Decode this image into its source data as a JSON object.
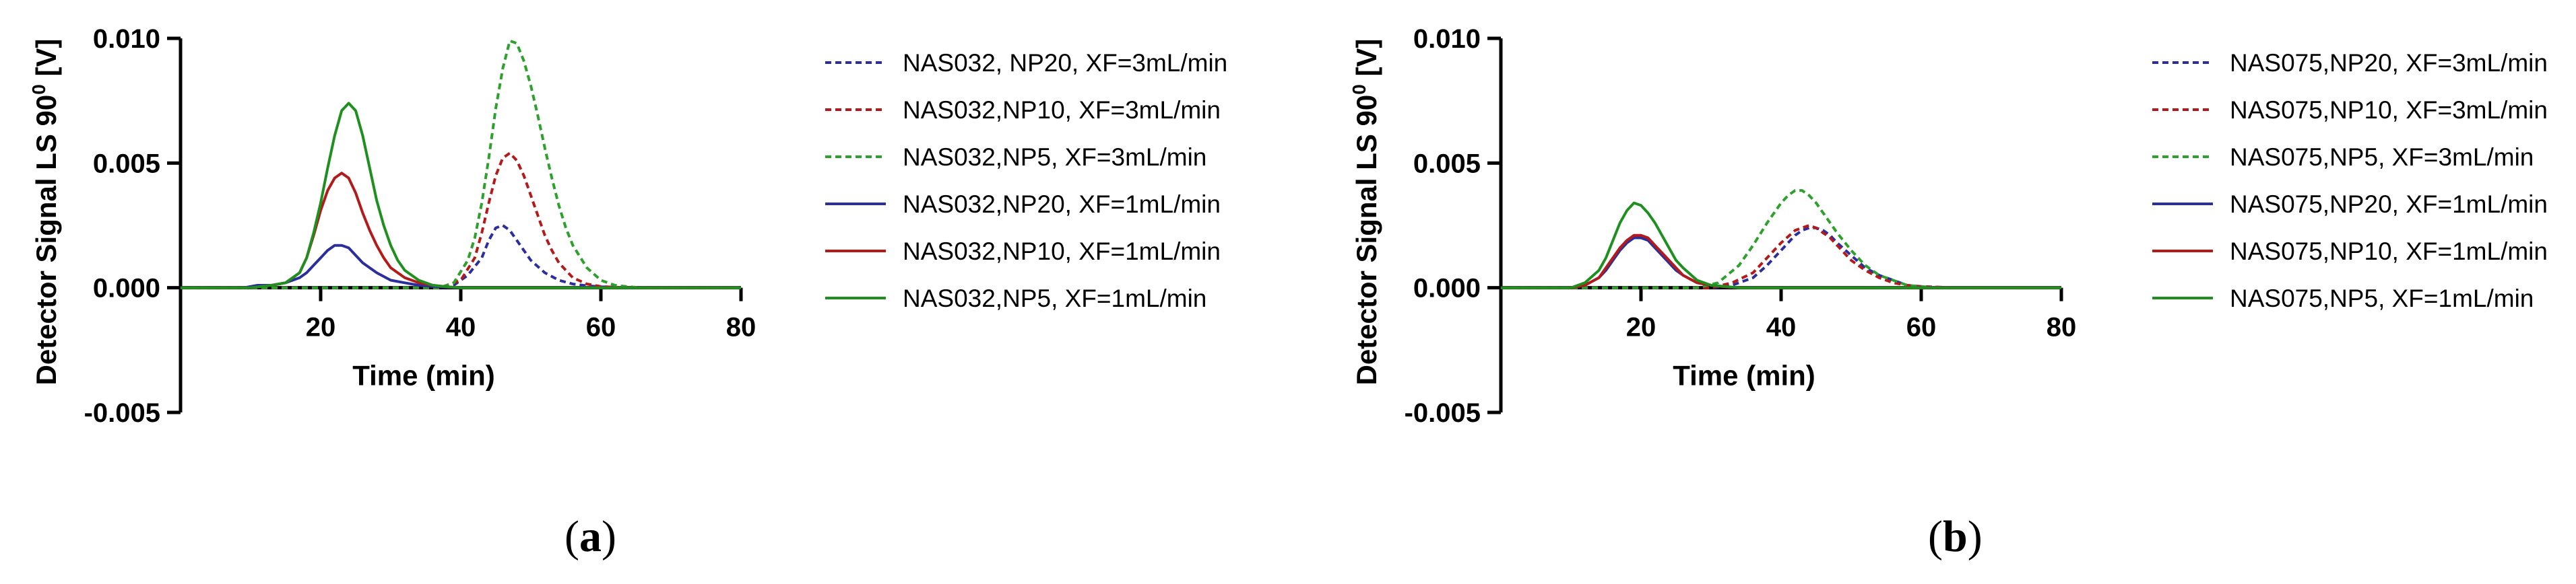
{
  "chart_data": [
    {
      "type": "line",
      "panel_label": "a",
      "title": "",
      "xlabel": "Time (min)",
      "ylabel": "Detector Signal LS 90",
      "ylabel_sup": "0",
      "ylabel_unit": "[V]",
      "xlim": [
        0,
        80
      ],
      "ylim": [
        -0.005,
        0.01
      ],
      "xticks": [
        20,
        40,
        60,
        80
      ],
      "xtick_labels": [
        "20",
        "40",
        "60",
        "80"
      ],
      "yticks": [
        -0.005,
        0.0,
        0.005,
        0.01
      ],
      "ytick_labels": [
        "-0.005",
        "0.000",
        "0.005",
        "0.010"
      ],
      "grid": false,
      "legend": "right",
      "series": [
        {
          "name": "NAS032, NP20, XF=3mL/min",
          "color": "#2b2f9e",
          "style": "dashed",
          "x": [
            0,
            36,
            39,
            41,
            43,
            44,
            45,
            46,
            47,
            48,
            49,
            50,
            52,
            54,
            56,
            58,
            60,
            64,
            70,
            80
          ],
          "y": [
            0,
            0,
            0.0001,
            0.0005,
            0.0012,
            0.0019,
            0.0024,
            0.0025,
            0.0023,
            0.0019,
            0.0015,
            0.0011,
            0.0006,
            0.0003,
            0.00015,
            8e-05,
            4e-05,
            1e-05,
            0,
            0
          ]
        },
        {
          "name": "NAS032,NP10, XF=3mL/min",
          "color": "#b31a1a",
          "style": "dashed",
          "x": [
            0,
            37,
            40,
            42,
            43,
            44,
            45,
            46,
            47,
            48,
            49,
            50,
            51,
            52,
            53,
            54,
            56,
            58,
            60,
            62,
            64,
            70,
            80
          ],
          "y": [
            0,
            0,
            0.0003,
            0.0012,
            0.0022,
            0.0034,
            0.0045,
            0.0052,
            0.0054,
            0.0051,
            0.0045,
            0.0037,
            0.0029,
            0.0021,
            0.0015,
            0.001,
            0.0004,
            0.00015,
            5e-05,
            2e-05,
            0,
            0,
            0
          ]
        },
        {
          "name": "NAS032,NP5,  XF=3mL/min",
          "color": "#2ea02e",
          "style": "dashed",
          "x": [
            0,
            37,
            39,
            41,
            42,
            43,
            44,
            45,
            46,
            47,
            48,
            49,
            50,
            51,
            52,
            53,
            54,
            55,
            56,
            58,
            60,
            62,
            64,
            66,
            70,
            80
          ],
          "y": [
            0,
            0,
            0.0002,
            0.0011,
            0.002,
            0.0034,
            0.0052,
            0.0072,
            0.0088,
            0.0099,
            0.0098,
            0.0091,
            0.0081,
            0.0069,
            0.0056,
            0.0044,
            0.0033,
            0.0024,
            0.0017,
            0.0008,
            0.0003,
            0.0001,
            4e-05,
            0,
            0,
            0
          ]
        },
        {
          "name": "NAS032,NP20, XF=1mL/min",
          "color": "#2b2f9e",
          "style": "solid",
          "x": [
            0,
            9,
            11,
            13,
            15,
            17,
            18,
            19,
            20,
            21,
            22,
            23,
            24,
            25,
            26,
            27,
            28,
            30,
            32,
            34,
            36,
            38,
            40,
            50,
            80
          ],
          "y": [
            0,
            0,
            0.0001,
            0.0001,
            0.0002,
            0.0004,
            0.0006,
            0.0009,
            0.0012,
            0.0015,
            0.0017,
            0.0017,
            0.0016,
            0.0013,
            0.001,
            0.0008,
            0.0006,
            0.0003,
            0.0002,
            0.0001,
            5e-05,
            2e-05,
            0,
            0,
            0
          ]
        },
        {
          "name": "NAS032,NP10, XF=1mL/min",
          "color": "#b31a1a",
          "style": "solid",
          "x": [
            0,
            10,
            13,
            15,
            17,
            18,
            19,
            20,
            21,
            22,
            23,
            24,
            25,
            26,
            27,
            28,
            29,
            30,
            32,
            34,
            36,
            38,
            40,
            50,
            80
          ],
          "y": [
            0,
            0,
            0.0001,
            0.0002,
            0.0006,
            0.0012,
            0.0021,
            0.0031,
            0.0039,
            0.0044,
            0.0046,
            0.0044,
            0.0038,
            0.003,
            0.0023,
            0.0017,
            0.0012,
            0.0008,
            0.0004,
            0.0002,
            0.0001,
            4e-05,
            0,
            0,
            0
          ]
        },
        {
          "name": "NAS032,NP5,  XF=1mL/min",
          "color": "#1f8f1f",
          "style": "solid",
          "x": [
            0,
            10,
            13,
            15,
            17,
            18,
            19,
            20,
            21,
            22,
            23,
            24,
            25,
            26,
            27,
            28,
            29,
            30,
            31,
            32,
            34,
            36,
            38,
            40,
            50,
            80
          ],
          "y": [
            0,
            0,
            0.0001,
            0.0002,
            0.0006,
            0.0012,
            0.0022,
            0.0034,
            0.0048,
            0.0061,
            0.0071,
            0.0074,
            0.0071,
            0.0061,
            0.0048,
            0.0035,
            0.0025,
            0.0017,
            0.0011,
            0.0007,
            0.0003,
            0.0001,
            4e-05,
            0,
            0,
            0
          ]
        }
      ]
    },
    {
      "type": "line",
      "panel_label": "b",
      "title": "",
      "xlabel": "Time (min)",
      "ylabel": "Detector Signal LS 90",
      "ylabel_sup": "0",
      "ylabel_unit": "[V]",
      "xlim": [
        0,
        80
      ],
      "ylim": [
        -0.005,
        0.01
      ],
      "xticks": [
        20,
        40,
        60,
        80
      ],
      "xtick_labels": [
        "20",
        "40",
        "60",
        "80"
      ],
      "yticks": [
        -0.005,
        0.0,
        0.005,
        0.01
      ],
      "ytick_labels": [
        "-0.005",
        "0.000",
        "0.005",
        "0.010"
      ],
      "grid": false,
      "legend": "right",
      "series": [
        {
          "name": "NAS075,NP20, XF=3mL/min",
          "color": "#2b2f9e",
          "style": "dashed",
          "x": [
            0,
            30,
            33,
            36,
            38,
            40,
            42,
            43,
            44,
            45,
            46,
            47,
            48,
            50,
            52,
            54,
            56,
            58,
            60,
            65,
            80
          ],
          "y": [
            0,
            0,
            0.0001,
            0.0004,
            0.0009,
            0.0015,
            0.0021,
            0.0023,
            0.0024,
            0.0024,
            0.0023,
            0.0021,
            0.0018,
            0.0013,
            0.0008,
            0.0005,
            0.0003,
            0.0001,
            5e-05,
            0,
            0
          ]
        },
        {
          "name": "NAS075,NP10, XF=3mL/min",
          "color": "#b31a1a",
          "style": "dashed",
          "x": [
            0,
            30,
            33,
            36,
            38,
            40,
            42,
            43,
            44,
            45,
            46,
            47,
            48,
            50,
            52,
            54,
            56,
            58,
            60,
            65,
            80
          ],
          "y": [
            0,
            0,
            0.0002,
            0.0006,
            0.0012,
            0.0018,
            0.0023,
            0.0024,
            0.0025,
            0.0024,
            0.0022,
            0.002,
            0.0017,
            0.0011,
            0.0007,
            0.0004,
            0.0002,
            0.0001,
            4e-05,
            0,
            0
          ]
        },
        {
          "name": "NAS075,NP5,  XF=3mL/min",
          "color": "#2ea02e",
          "style": "dashed",
          "x": [
            0,
            28,
            31,
            34,
            36,
            38,
            40,
            41,
            42,
            43,
            44,
            45,
            46,
            48,
            50,
            52,
            54,
            56,
            58,
            60,
            62,
            65,
            80
          ],
          "y": [
            0,
            0,
            0.0002,
            0.0009,
            0.0017,
            0.0026,
            0.0034,
            0.0037,
            0.0039,
            0.0039,
            0.0037,
            0.0034,
            0.003,
            0.0022,
            0.0015,
            0.0009,
            0.0005,
            0.0003,
            0.0001,
            5e-05,
            0,
            0,
            0
          ]
        },
        {
          "name": "NAS075,NP20, XF=1mL/min",
          "color": "#2b2f9e",
          "style": "solid",
          "x": [
            0,
            10,
            12,
            14,
            15,
            16,
            17,
            18,
            19,
            20,
            21,
            22,
            23,
            24,
            25,
            26,
            28,
            30,
            32,
            34,
            40,
            80
          ],
          "y": [
            0,
            0,
            0.0001,
            0.0004,
            0.0007,
            0.0011,
            0.0015,
            0.0018,
            0.002,
            0.002,
            0.0019,
            0.0016,
            0.0013,
            0.001,
            0.0007,
            0.0005,
            0.0002,
            0.0001,
            4e-05,
            0,
            0,
            0
          ]
        },
        {
          "name": "NAS075,NP10, XF=1mL/min",
          "color": "#b31a1a",
          "style": "solid",
          "x": [
            0,
            10,
            12,
            14,
            15,
            16,
            17,
            18,
            19,
            20,
            21,
            22,
            23,
            24,
            25,
            26,
            28,
            30,
            32,
            34,
            40,
            80
          ],
          "y": [
            0,
            0,
            0.0001,
            0.0004,
            0.0008,
            0.0012,
            0.0016,
            0.0019,
            0.0021,
            0.0021,
            0.002,
            0.0017,
            0.0014,
            0.0011,
            0.0008,
            0.0005,
            0.0002,
            0.0001,
            4e-05,
            0,
            0,
            0
          ]
        },
        {
          "name": "NAS075,NP5,  XF=1mL/min",
          "color": "#1f8f1f",
          "style": "solid",
          "x": [
            0,
            10,
            12,
            14,
            15,
            16,
            17,
            18,
            19,
            20,
            21,
            22,
            23,
            24,
            25,
            26,
            28,
            30,
            32,
            34,
            40,
            80
          ],
          "y": [
            0,
            0,
            0.0002,
            0.0007,
            0.0012,
            0.0019,
            0.0026,
            0.0031,
            0.0034,
            0.0033,
            0.003,
            0.0026,
            0.0021,
            0.0016,
            0.0011,
            0.0008,
            0.0003,
            0.0001,
            5e-05,
            0,
            0,
            0
          ]
        }
      ]
    }
  ]
}
